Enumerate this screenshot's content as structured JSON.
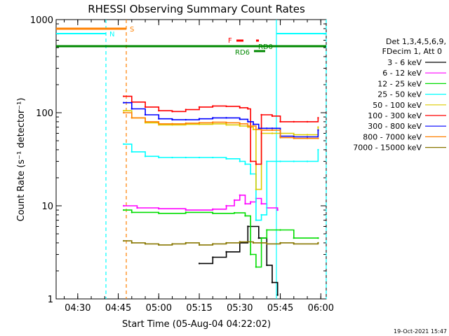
{
  "title": "RHESSI Observing Summary Count Rates",
  "footer_date": "19-Oct-2021 15:47",
  "chart_data": {
    "type": "line",
    "title": "RHESSI Observing Summary Count Rates",
    "xlabel": "Start Time (05-Aug-04 04:22:02)",
    "ylabel": "Count Rate (s⁻¹ detector⁻¹)",
    "y_scale": "log",
    "ylim": [
      1,
      1000
    ],
    "xlim": [
      "04:22",
      "06:02"
    ],
    "x_ticks": [
      "04:30",
      "04:45",
      "05:00",
      "05:15",
      "05:30",
      "05:45",
      "06:00"
    ],
    "y_ticks": [
      "1",
      "10",
      "100",
      "1000"
    ],
    "legend_header": [
      "Det 1,3,4,5,6,9,",
      "FDecim 1, Att 0"
    ],
    "grid": false,
    "legend_position": "right",
    "series": [
      {
        "name": "3 - 6 keV",
        "color": "#000000",
        "x": [
          "05:15",
          "05:20",
          "05:25",
          "05:30",
          "05:33",
          "05:37",
          "05:40",
          "05:42",
          "05:44"
        ],
        "y": [
          2.4,
          2.8,
          3.2,
          4.0,
          6.0,
          4.5,
          2.3,
          1.5,
          1.1
        ]
      },
      {
        "name": "6 - 12 keV",
        "color": "#ff00ff",
        "x": [
          "04:47",
          "04:52",
          "05:00",
          "05:10",
          "05:20",
          "05:25",
          "05:28",
          "05:30",
          "05:32",
          "05:34",
          "05:36",
          "05:38",
          "05:40",
          "05:44"
        ],
        "y": [
          10.0,
          9.5,
          9.3,
          9.0,
          9.2,
          10.0,
          11.5,
          13.0,
          10.5,
          11.0,
          12.0,
          10.5,
          9.5,
          9.0
        ]
      },
      {
        "name": "12 - 25 keV",
        "color": "#00dd00",
        "x": [
          "04:47",
          "04:50",
          "05:00",
          "05:10",
          "05:20",
          "05:28",
          "05:32",
          "05:34",
          "05:36",
          "05:38",
          "05:40",
          "05:45",
          "05:50",
          "05:59"
        ],
        "y": [
          9.0,
          8.5,
          8.3,
          8.5,
          8.3,
          8.4,
          7.8,
          3.0,
          2.2,
          4.5,
          5.5,
          5.5,
          4.5,
          4.5
        ]
      },
      {
        "name": "25 - 50 keV",
        "color": "#00ffff",
        "x": [
          "04:47",
          "04:50",
          "04:55",
          "05:00",
          "05:05",
          "05:10",
          "05:15",
          "05:20",
          "05:25",
          "05:30",
          "05:32",
          "05:34",
          "05:36",
          "05:38",
          "05:40",
          "05:45",
          "05:50",
          "05:55",
          "05:59"
        ],
        "y": [
          46,
          38,
          34,
          33,
          33,
          33,
          33,
          33,
          32,
          30,
          28,
          22,
          7,
          8,
          30,
          30,
          30,
          30,
          40
        ]
      },
      {
        "name": "50 - 100 keV",
        "color": "#ddcc00",
        "x": [
          "04:47",
          "04:50",
          "04:55",
          "05:00",
          "05:05",
          "05:10",
          "05:15",
          "05:20",
          "05:25",
          "05:30",
          "05:33",
          "05:35",
          "05:36",
          "05:38",
          "05:42",
          "05:45",
          "05:50",
          "05:55",
          "05:59"
        ],
        "y": [
          105,
          88,
          78,
          74,
          74,
          75,
          75,
          76,
          74,
          72,
          70,
          66,
          15,
          60,
          60,
          60,
          58,
          58,
          70
        ]
      },
      {
        "name": "100 - 300 keV",
        "color": "#ff0000",
        "x": [
          "04:47",
          "04:50",
          "04:55",
          "05:00",
          "05:05",
          "05:10",
          "05:15",
          "05:20",
          "05:25",
          "05:30",
          "05:33",
          "05:34",
          "05:36",
          "05:38",
          "05:42",
          "05:45",
          "05:50",
          "05:55",
          "05:59"
        ],
        "y": [
          150,
          130,
          115,
          105,
          103,
          108,
          115,
          118,
          117,
          113,
          110,
          30,
          28,
          95,
          92,
          80,
          80,
          80,
          88
        ]
      },
      {
        "name": "300 - 800 keV",
        "color": "#0000ff",
        "x": [
          "04:47",
          "04:50",
          "04:55",
          "05:00",
          "05:05",
          "05:10",
          "05:15",
          "05:20",
          "05:25",
          "05:30",
          "05:33",
          "05:35",
          "05:37",
          "05:40",
          "05:42",
          "05:45",
          "05:50",
          "05:55",
          "05:59"
        ],
        "y": [
          128,
          110,
          95,
          86,
          84,
          84,
          86,
          88,
          88,
          85,
          80,
          75,
          68,
          68,
          68,
          56,
          55,
          55,
          65
        ]
      },
      {
        "name": "800 - 7000 keV",
        "color": "#ff8000",
        "x": [
          "04:47",
          "04:50",
          "04:55",
          "05:00",
          "05:05",
          "05:10",
          "05:15",
          "05:20",
          "05:25",
          "05:30",
          "05:33",
          "05:36",
          "05:38",
          "05:42",
          "05:45",
          "05:50",
          "05:55",
          "05:59"
        ],
        "y": [
          100,
          88,
          80,
          76,
          76,
          77,
          78,
          79,
          78,
          76,
          72,
          66,
          65,
          65,
          54,
          53,
          53,
          53
        ]
      },
      {
        "name": "7000 - 15000 keV",
        "color": "#887700",
        "x": [
          "04:47",
          "04:50",
          "04:55",
          "05:00",
          "05:05",
          "05:10",
          "05:15",
          "05:20",
          "05:25",
          "05:30",
          "05:35",
          "05:40",
          "05:45",
          "05:50",
          "05:59"
        ],
        "y": [
          4.2,
          4.0,
          3.9,
          3.8,
          3.9,
          4.0,
          3.8,
          3.9,
          4.0,
          4.1,
          4.0,
          3.9,
          4.0,
          3.9,
          4.0
        ]
      }
    ],
    "annotations": [
      {
        "text": "S",
        "color": "#ff8000"
      },
      {
        "text": "N",
        "color": "#00ffff"
      },
      {
        "text": "F",
        "color": "#ff0000"
      },
      {
        "text": "RD0",
        "color": "#008800"
      },
      {
        "text": "RD6",
        "color": "#008800"
      }
    ]
  }
}
